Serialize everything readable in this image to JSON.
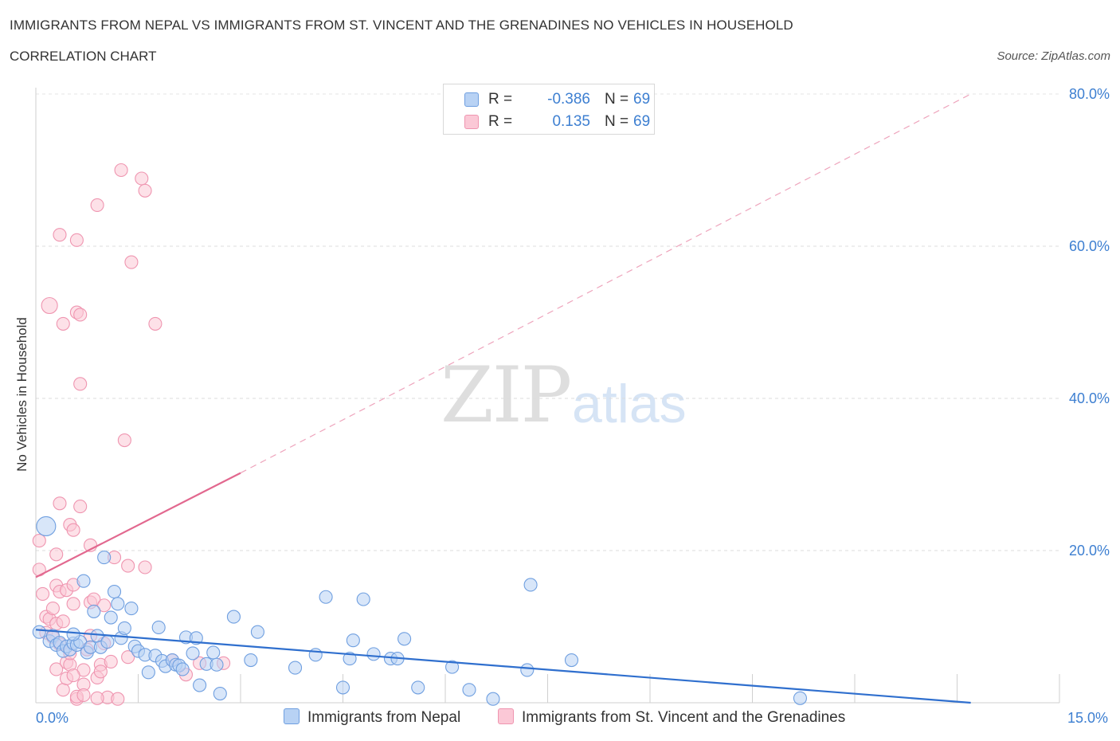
{
  "title": "IMMIGRANTS FROM NEPAL VS IMMIGRANTS FROM ST. VINCENT AND THE GRENADINES NO VEHICLES IN HOUSEHOLD",
  "subtitle": "CORRELATION CHART",
  "source": "Source: ZipAtlas.com",
  "watermark": {
    "zip": "ZIP",
    "atlas": "atlas"
  },
  "legend": {
    "r_label": "R =",
    "n_label": "N =",
    "rows": [
      {
        "name": "Immigrants from Nepal",
        "r": "-0.386",
        "n": "69",
        "fill": "#b8d2f4",
        "stroke": "#6f9fe0"
      },
      {
        "name": "Immigrants from St. Vincent and the Grenadines",
        "r": "0.135",
        "n": "69",
        "fill": "#fbc8d6",
        "stroke": "#ef95b0"
      }
    ]
  },
  "chart_data": {
    "type": "scatter",
    "title": "IMMIGRANTS FROM NEPAL VS IMMIGRANTS FROM ST. VINCENT AND THE GRENADINES NO VEHICLES IN HOUSEHOLD",
    "xlabel": "",
    "ylabel": "No Vehicles in Household",
    "xlim": [
      0,
      15
    ],
    "ylim": [
      0,
      80
    ],
    "x_tick_labels": [
      "0.0%",
      "15.0%"
    ],
    "y_ticks": [
      20,
      40,
      60,
      80
    ],
    "y_tick_labels": [
      "20.0%",
      "40.0%",
      "60.0%",
      "80.0%"
    ],
    "grid": true,
    "legend_position": "top-center",
    "series": [
      {
        "name": "Immigrants from Nepal",
        "color": "#6f9fe0",
        "fill": "#b8d2f4",
        "trend": {
          "x": [
            0,
            13.7
          ],
          "y": [
            9.6,
            0
          ],
          "color": "#2f6fce"
        },
        "points": [
          [
            0.05,
            9.3
          ],
          [
            0.15,
            23.2
          ],
          [
            0.2,
            8.1
          ],
          [
            0.25,
            8.8
          ],
          [
            0.3,
            7.6
          ],
          [
            0.35,
            7.9
          ],
          [
            0.4,
            6.8
          ],
          [
            0.45,
            7.4
          ],
          [
            0.5,
            7.0
          ],
          [
            0.55,
            7.8
          ],
          [
            0.6,
            7.6
          ],
          [
            0.65,
            8.0
          ],
          [
            0.7,
            16.0
          ],
          [
            0.75,
            6.6
          ],
          [
            0.8,
            7.3
          ],
          [
            0.85,
            12.0
          ],
          [
            0.9,
            8.8
          ],
          [
            0.95,
            7.3
          ],
          [
            1.0,
            19.1
          ],
          [
            1.1,
            11.2
          ],
          [
            1.15,
            14.6
          ],
          [
            1.2,
            13.0
          ],
          [
            1.25,
            8.5
          ],
          [
            1.3,
            9.8
          ],
          [
            1.4,
            12.4
          ],
          [
            1.45,
            7.4
          ],
          [
            1.5,
            6.8
          ],
          [
            1.6,
            6.3
          ],
          [
            1.65,
            4.0
          ],
          [
            1.75,
            6.2
          ],
          [
            1.8,
            9.9
          ],
          [
            1.85,
            5.5
          ],
          [
            1.9,
            4.8
          ],
          [
            2.0,
            5.6
          ],
          [
            2.05,
            5.0
          ],
          [
            2.1,
            4.9
          ],
          [
            2.15,
            4.4
          ],
          [
            2.2,
            8.6
          ],
          [
            2.3,
            6.5
          ],
          [
            2.35,
            8.5
          ],
          [
            2.4,
            2.3
          ],
          [
            2.5,
            5.1
          ],
          [
            2.6,
            6.6
          ],
          [
            2.65,
            5.0
          ],
          [
            2.7,
            1.2
          ],
          [
            2.9,
            11.3
          ],
          [
            3.15,
            5.6
          ],
          [
            3.25,
            9.3
          ],
          [
            3.8,
            4.6
          ],
          [
            4.1,
            6.3
          ],
          [
            4.25,
            13.9
          ],
          [
            4.5,
            2.0
          ],
          [
            4.6,
            5.8
          ],
          [
            4.65,
            8.2
          ],
          [
            4.8,
            13.6
          ],
          [
            4.95,
            6.4
          ],
          [
            5.2,
            5.8
          ],
          [
            5.3,
            5.8
          ],
          [
            5.4,
            8.4
          ],
          [
            5.6,
            2.0
          ],
          [
            6.1,
            4.7
          ],
          [
            6.35,
            1.7
          ],
          [
            6.7,
            0.5
          ],
          [
            7.2,
            4.3
          ],
          [
            7.25,
            15.5
          ],
          [
            7.85,
            5.6
          ],
          [
            11.2,
            0.6
          ],
          [
            0.55,
            9.0
          ],
          [
            1.05,
            8.0
          ]
        ]
      },
      {
        "name": "Immigrants from St. Vincent and the Grenadines",
        "color": "#ef95b0",
        "fill": "#fbc8d6",
        "trend": {
          "x": [
            0,
            3.0
          ],
          "y": [
            16.5,
            30.2
          ],
          "color": "#e2688f"
        },
        "trend_extension": {
          "x": [
            3.0,
            13.7
          ],
          "y": [
            30.2,
            80.0
          ],
          "style": "dashed"
        },
        "points": [
          [
            0.05,
            21.3
          ],
          [
            0.05,
            17.5
          ],
          [
            0.1,
            14.3
          ],
          [
            0.15,
            11.3
          ],
          [
            0.15,
            9.2
          ],
          [
            0.2,
            11.0
          ],
          [
            0.2,
            52.2
          ],
          [
            0.25,
            8.6
          ],
          [
            0.3,
            15.4
          ],
          [
            0.3,
            10.4
          ],
          [
            0.3,
            4.4
          ],
          [
            0.35,
            14.6
          ],
          [
            0.3,
            19.5
          ],
          [
            0.35,
            7.7
          ],
          [
            0.4,
            1.7
          ],
          [
            0.4,
            10.7
          ],
          [
            0.4,
            49.8
          ],
          [
            0.35,
            61.5
          ],
          [
            0.35,
            26.2
          ],
          [
            0.45,
            3.2
          ],
          [
            0.45,
            14.8
          ],
          [
            0.45,
            5.3
          ],
          [
            0.5,
            5.0
          ],
          [
            0.5,
            6.5
          ],
          [
            0.5,
            23.4
          ],
          [
            0.55,
            15.5
          ],
          [
            0.55,
            13.0
          ],
          [
            0.55,
            22.7
          ],
          [
            0.6,
            0.5
          ],
          [
            0.6,
            51.3
          ],
          [
            0.6,
            60.8
          ],
          [
            0.65,
            51.0
          ],
          [
            0.6,
            0.8
          ],
          [
            0.7,
            4.3
          ],
          [
            0.75,
            7.0
          ],
          [
            0.65,
            25.8
          ],
          [
            0.7,
            2.4
          ],
          [
            0.65,
            41.9
          ],
          [
            0.8,
            13.2
          ],
          [
            0.8,
            20.7
          ],
          [
            0.8,
            8.8
          ],
          [
            0.85,
            13.6
          ],
          [
            0.9,
            65.4
          ],
          [
            0.9,
            3.3
          ],
          [
            0.95,
            5.0
          ],
          [
            0.95,
            4.1
          ],
          [
            1.0,
            7.8
          ],
          [
            1.0,
            12.8
          ],
          [
            1.05,
            0.7
          ],
          [
            1.1,
            5.4
          ],
          [
            1.15,
            19.1
          ],
          [
            1.2,
            0.5
          ],
          [
            1.25,
            70.0
          ],
          [
            1.3,
            34.5
          ],
          [
            1.35,
            18.0
          ],
          [
            1.35,
            6.0
          ],
          [
            1.4,
            57.9
          ],
          [
            1.55,
            68.9
          ],
          [
            1.6,
            67.3
          ],
          [
            1.6,
            17.8
          ],
          [
            1.75,
            49.8
          ],
          [
            2.0,
            5.6
          ],
          [
            2.2,
            3.7
          ],
          [
            2.4,
            5.2
          ],
          [
            2.75,
            5.2
          ],
          [
            0.55,
            3.6
          ],
          [
            0.25,
            12.4
          ],
          [
            0.7,
            1.0
          ],
          [
            0.9,
            0.6
          ]
        ]
      }
    ]
  }
}
